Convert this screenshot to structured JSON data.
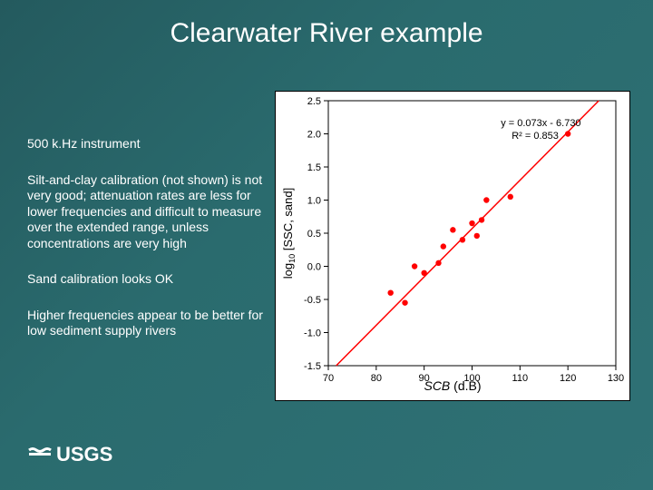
{
  "slide": {
    "title": "Clearwater River example",
    "bg_gradient_from": "#245a5e",
    "bg_gradient_to": "#2f7175"
  },
  "body_text": {
    "p1": "500 k.Hz instrument",
    "p2": "Silt-and-clay calibration (not shown) is not very good; attenuation rates are less for lower frequencies and difficult to measure over the extended range, unless concentrations are very high",
    "p3": "Sand calibration looks OK",
    "p4": "Higher frequencies appear to be  better for low sediment supply rivers",
    "font_size": 14,
    "color": "#ffffff"
  },
  "logo": {
    "name": "USGS",
    "fill": "#ffffff"
  },
  "chart": {
    "type": "scatter",
    "background_color": "#ffffff",
    "plot_border_color": "#000000",
    "point_color": "#ff0000",
    "point_radius": 3.2,
    "line_color": "#ff0000",
    "line_width": 1.5,
    "axis_font_size": 11,
    "label_font_size": 13,
    "xlabel_html": "<span style=\"font-style:italic\">SCB</span> (d.B)",
    "ylabel": "log₁₀ [SSC, sand]",
    "equation_lines": [
      "y = 0.073x - 6.730",
      "R² = 0.853"
    ],
    "equation_font_size": 11,
    "equation_color": "#000000",
    "xlim": [
      70,
      130
    ],
    "ylim": [
      -1.5,
      2.5
    ],
    "xtick_step": 10,
    "ytick_step": 0.5,
    "xticks": [
      70,
      80,
      90,
      100,
      110,
      120,
      130
    ],
    "yticks": [
      -1.5,
      -1.0,
      -0.5,
      0.0,
      0.5,
      1.0,
      1.5,
      2.0,
      2.5
    ],
    "fit": {
      "slope": 0.073,
      "intercept": -6.73
    },
    "points": [
      [
        83,
        -0.4
      ],
      [
        86,
        -0.55
      ],
      [
        88,
        0.0
      ],
      [
        90,
        -0.1
      ],
      [
        93,
        0.05
      ],
      [
        94,
        0.3
      ],
      [
        96,
        0.55
      ],
      [
        98,
        0.4
      ],
      [
        100,
        0.65
      ],
      [
        101,
        0.46
      ],
      [
        102,
        0.7
      ],
      [
        103,
        1.0
      ],
      [
        108,
        1.05
      ],
      [
        120,
        2.0
      ]
    ]
  }
}
